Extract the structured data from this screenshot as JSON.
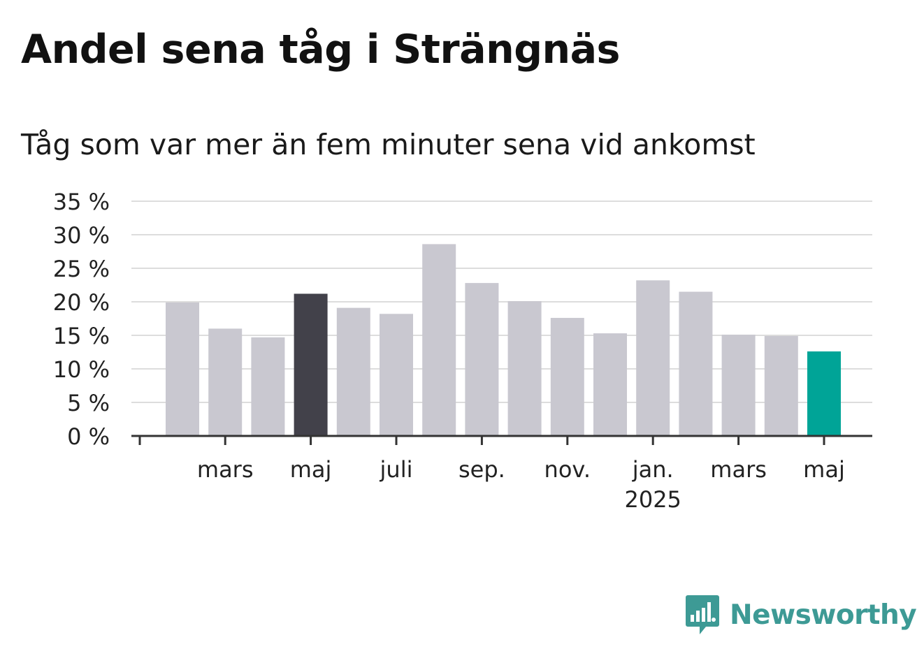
{
  "title": "Andel sena tåg i Strängnäs",
  "subtitle": "Tåg som var mer än fem minuter sena vid ankomst",
  "brand": {
    "name": "Newsworthy",
    "color": "#3d9a95"
  },
  "colors": {
    "bar_default": "#c9c8d0",
    "bar_highlight": "#42414a",
    "bar_latest": "#00a497",
    "grid": "#dddddd",
    "axis": "#333333"
  },
  "chart_data": {
    "type": "bar",
    "title": "Andel sena tåg i Strängnäs",
    "subtitle": "Tåg som var mer än fem minuter sena vid ankomst",
    "xlabel": "",
    "ylabel": "",
    "ylim": [
      0,
      35
    ],
    "yticks": [
      0,
      5,
      10,
      15,
      20,
      25,
      30,
      35
    ],
    "ytick_labels": [
      "0 %",
      "5 %",
      "10 %",
      "15 %",
      "20 %",
      "25 %",
      "30 %",
      "35 %"
    ],
    "grid": true,
    "categories": [
      "2024-02",
      "2024-03",
      "2024-04",
      "2024-05",
      "2024-06",
      "2024-07",
      "2024-08",
      "2024-09",
      "2024-10",
      "2024-11",
      "2024-12",
      "2025-01",
      "2025-02",
      "2025-03",
      "2025-04",
      "2025-05"
    ],
    "values": [
      19.9,
      16.0,
      14.7,
      21.2,
      19.1,
      18.2,
      28.6,
      22.8,
      20.1,
      17.6,
      15.3,
      23.2,
      21.5,
      15.1,
      14.9,
      12.6
    ],
    "highlight": {
      "2024-05": "bar_highlight",
      "2025-05": "bar_latest"
    },
    "xtick_labels": [
      {
        "at": "2024-03",
        "label": "mars",
        "sub": ""
      },
      {
        "at": "2024-05",
        "label": "maj",
        "sub": ""
      },
      {
        "at": "2024-07",
        "label": "juli",
        "sub": ""
      },
      {
        "at": "2024-09",
        "label": "sep.",
        "sub": ""
      },
      {
        "at": "2024-11",
        "label": "nov.",
        "sub": ""
      },
      {
        "at": "2025-01",
        "label": "jan.",
        "sub": "2025"
      },
      {
        "at": "2025-03",
        "label": "mars",
        "sub": ""
      },
      {
        "at": "2025-05",
        "label": "maj",
        "sub": ""
      }
    ]
  }
}
